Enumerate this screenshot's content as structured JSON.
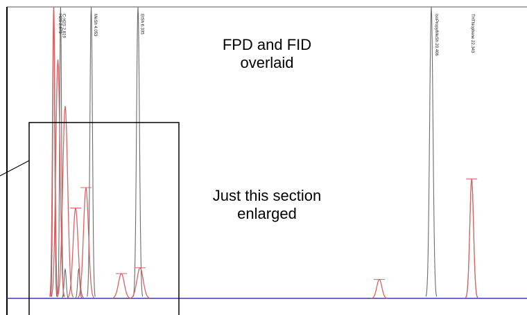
{
  "annotations": {
    "overlay_caption": "FPD and FID overlaid",
    "enlarge_caption": "Just this section enlarged"
  },
  "chart_data": {
    "type": "line",
    "title": "",
    "xlabel": "",
    "ylabel": "",
    "xlim": [
      0,
      25
    ],
    "ylim": [
      0,
      100
    ],
    "grid": false,
    "colors": {
      "FID": "#6b6b6b",
      "FPD": "#e06060",
      "baseline": "#3a3ab0"
    },
    "series": [
      {
        "name": "FID",
        "peaks": [
          {
            "rt": 2.25,
            "height": 100,
            "width": 0.045
          },
          {
            "rt": 2.58,
            "height": 100,
            "width": 0.045
          },
          {
            "rt": 2.8,
            "height": 10,
            "width": 0.05
          },
          {
            "rt": 3.45,
            "height": 10,
            "width": 0.05
          },
          {
            "rt": 4.05,
            "height": 100,
            "width": 0.06
          },
          {
            "rt": 6.3,
            "height": 100,
            "width": 0.07
          },
          {
            "rt": 20.4,
            "height": 100,
            "width": 0.08
          },
          {
            "rt": 22.34,
            "height": 41,
            "width": 0.09
          }
        ]
      },
      {
        "name": "FPD",
        "peaks": [
          {
            "rt": 2.25,
            "height": 100,
            "width": 0.06
          },
          {
            "rt": 2.45,
            "height": 82,
            "width": 0.1
          },
          {
            "rt": 2.8,
            "height": 66,
            "width": 0.12
          },
          {
            "rt": 3.3,
            "height": 31,
            "width": 0.12
          },
          {
            "rt": 3.8,
            "height": 38,
            "width": 0.12
          },
          {
            "rt": 5.5,
            "height": 8.5,
            "width": 0.14
          },
          {
            "rt": 6.4,
            "height": 10.5,
            "width": 0.15
          },
          {
            "rt": 17.9,
            "height": 6.5,
            "width": 0.12
          },
          {
            "rt": 22.34,
            "height": 41,
            "width": 0.09
          }
        ]
      }
    ],
    "peak_labels": [
      {
        "text": "H2S 2.673",
        "rt": 2.5
      },
      {
        "text": "C-H2S 2.819",
        "rt": 2.68
      },
      {
        "text": "MeSh 4.053",
        "rt": 4.2
      },
      {
        "text": "EtSh 6.335",
        "rt": 6.45
      },
      {
        "text": "IsoPropylMeSh 20.406",
        "rt": 20.6
      },
      {
        "text": "THThiophene 22.343",
        "rt": 22.34
      }
    ],
    "zoom_region": {
      "xrange": [
        1.0,
        8.0
      ],
      "label": "Just this section enlarged"
    }
  }
}
